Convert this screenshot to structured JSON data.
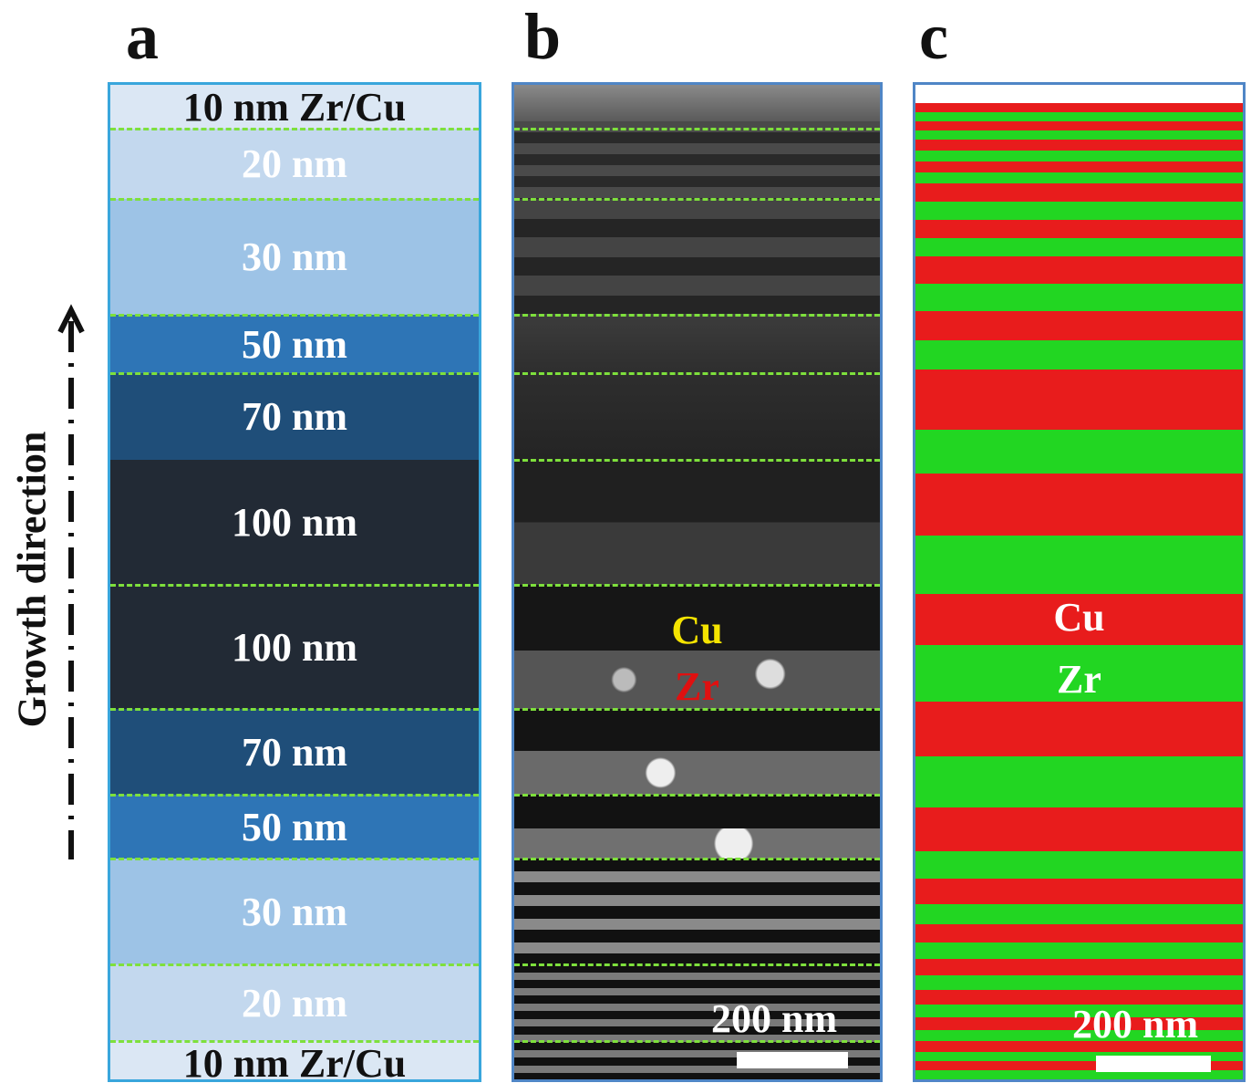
{
  "panels": {
    "a": {
      "letter": "a"
    },
    "b": {
      "letter": "b",
      "elements": [
        "Cu",
        "Zr"
      ],
      "scale_bar": "200 nm"
    },
    "c": {
      "letter": "c",
      "elements": [
        "Cu",
        "Zr"
      ],
      "scale_bar": "200 nm"
    }
  },
  "growth_label": "Growth direction",
  "layers": [
    {
      "label": "10 nm Zr/Cu",
      "color": "#dbe7f4",
      "text_color": "#111111"
    },
    {
      "label": "20 nm",
      "color": "#c3d8ee",
      "text_color": "#ffffff"
    },
    {
      "label": "30 nm",
      "color": "#9dc3e6",
      "text_color": "#ffffff"
    },
    {
      "label": "50 nm",
      "color": "#2e75b6",
      "text_color": "#ffffff"
    },
    {
      "label": "70 nm",
      "color": "#1f4e79",
      "text_color": "#ffffff"
    },
    {
      "label": "100 nm",
      "color": "#222a35",
      "text_color": "#ffffff"
    },
    {
      "label": "100 nm",
      "color": "#222a35",
      "text_color": "#ffffff"
    },
    {
      "label": "70 nm",
      "color": "#1f4e79",
      "text_color": "#ffffff"
    },
    {
      "label": "50 nm",
      "color": "#2e75b6",
      "text_color": "#ffffff"
    },
    {
      "label": "30 nm",
      "color": "#9dc3e6",
      "text_color": "#ffffff"
    },
    {
      "label": "20 nm",
      "color": "#c3d8ee",
      "text_color": "#ffffff"
    },
    {
      "label": "10 nm Zr/Cu",
      "color": "#dbe7f4",
      "text_color": "#111111"
    }
  ],
  "colors": {
    "cu_tem": "#f5e400",
    "zr_tem": "#e01010",
    "cu_map": "#e81c1c",
    "zr_map": "#22d622",
    "dash": "#7ee03c"
  }
}
